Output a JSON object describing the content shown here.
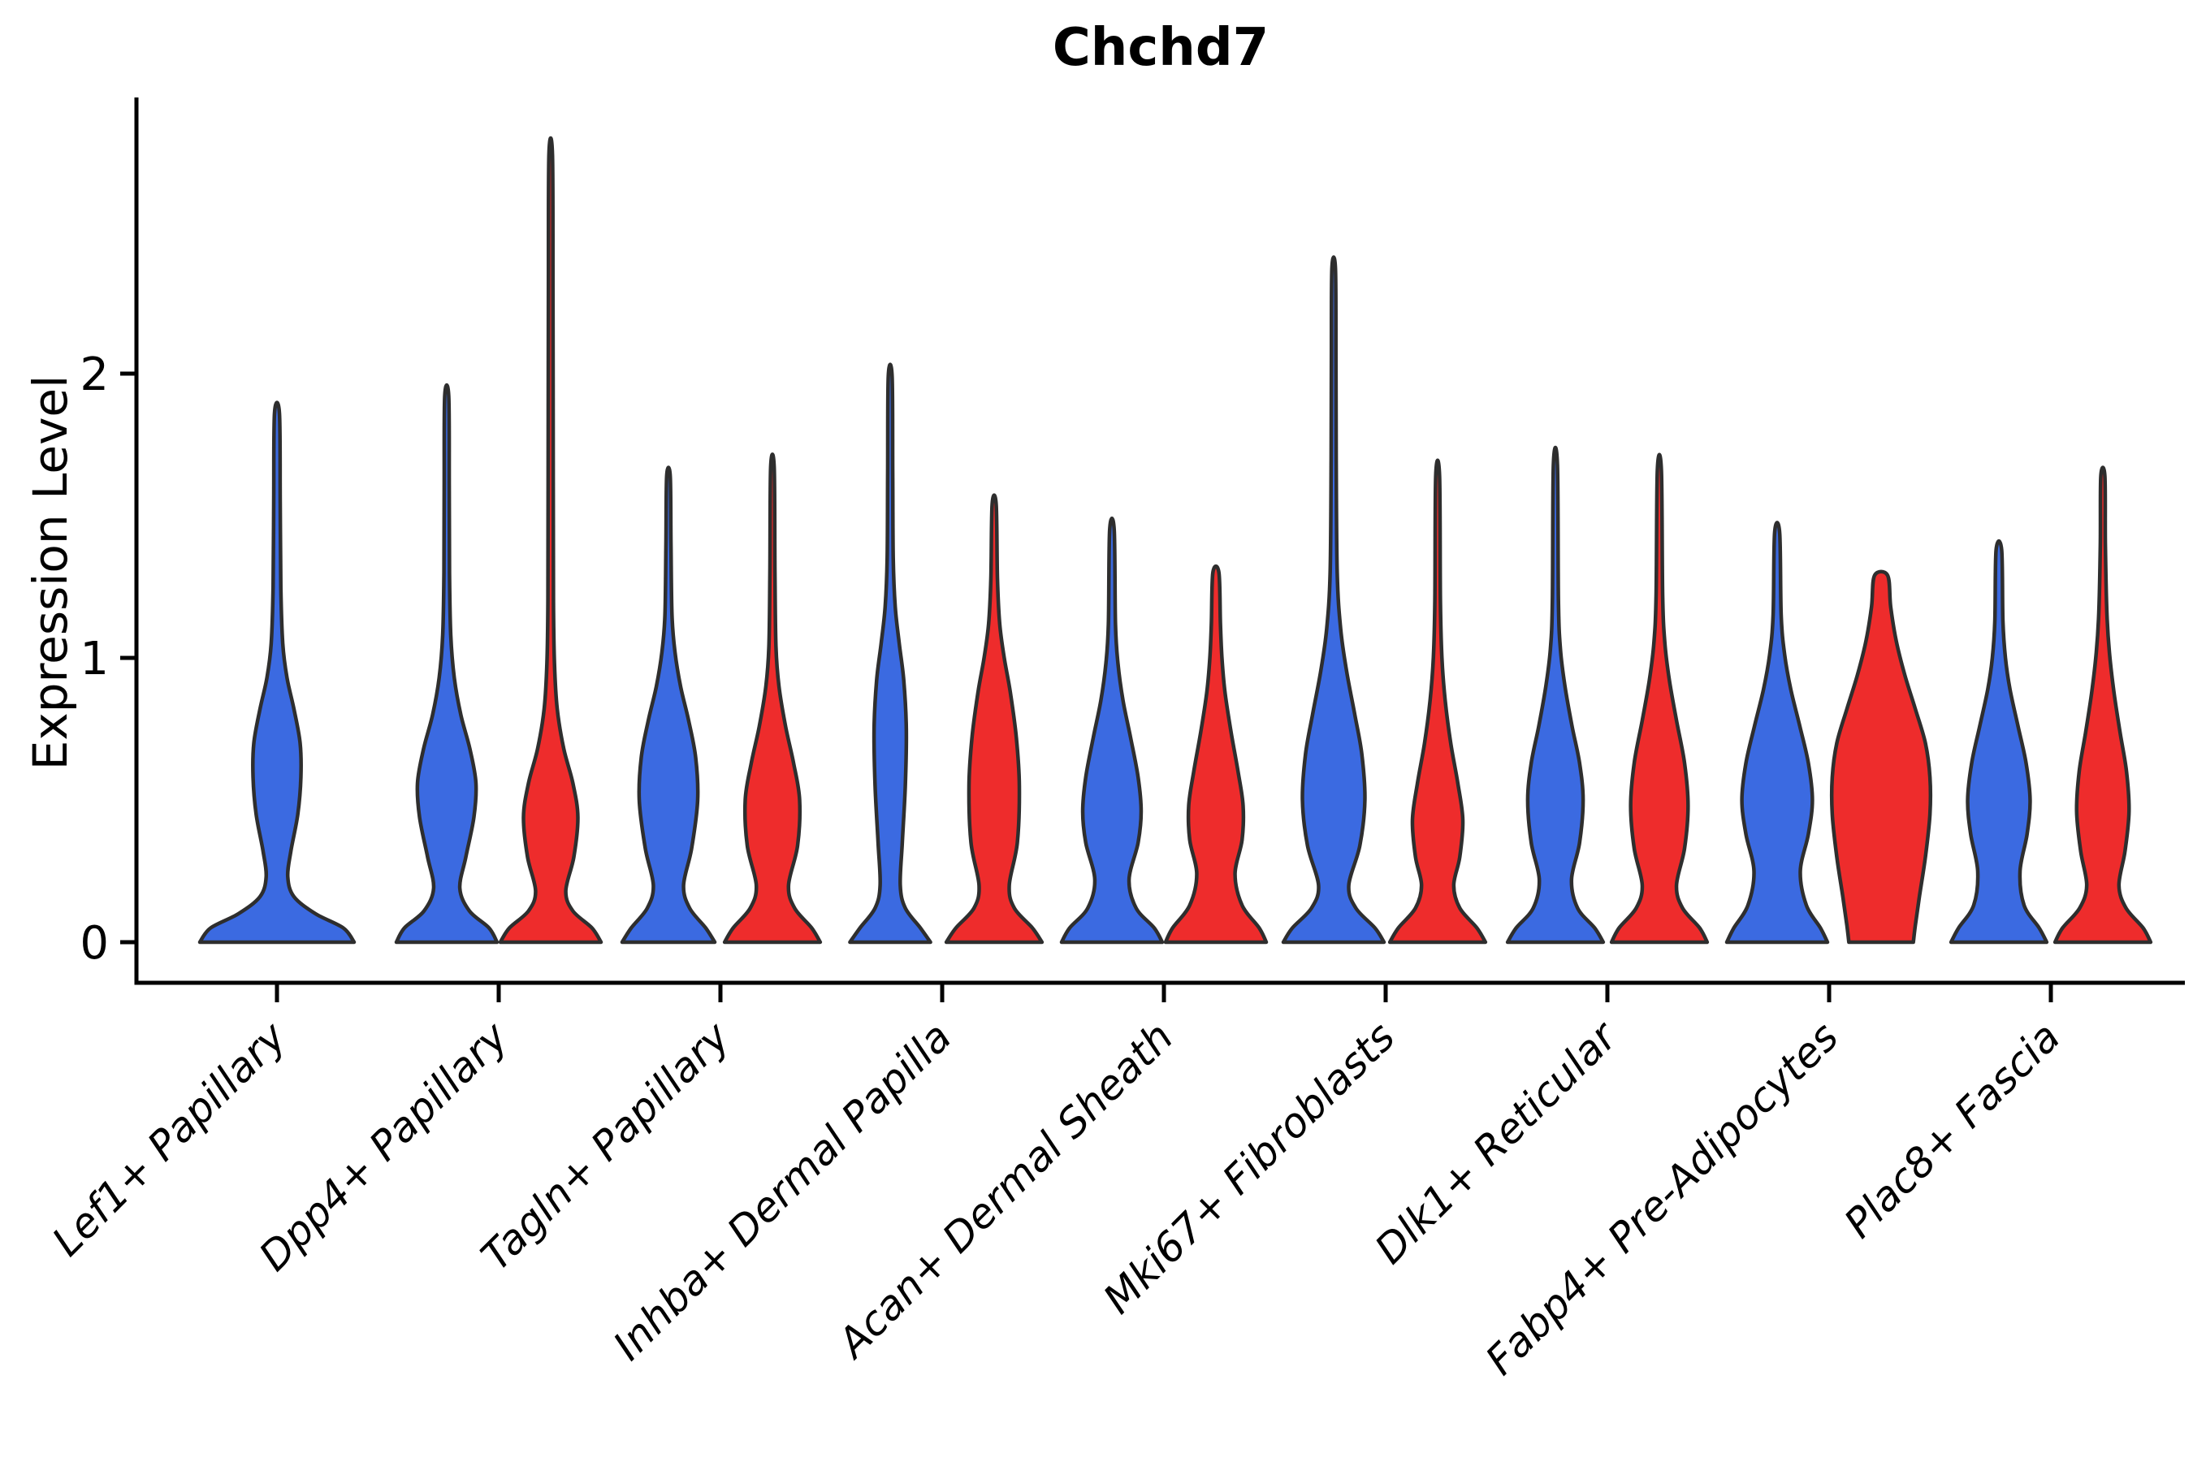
{
  "page": {
    "background": "#ffffff"
  },
  "chart_data": {
    "type": "violin",
    "title": "Chchd7",
    "ylabel": "Expression Level",
    "xlabel": "",
    "grid": false,
    "legend": "none",
    "ylim": [
      -0.15,
      2.97
    ],
    "yticks": [
      {
        "value": 0,
        "label": "0"
      },
      {
        "value": 1,
        "label": "1"
      },
      {
        "value": 2,
        "label": "2"
      }
    ],
    "colors": {
      "blue": "#3b6ae1",
      "red": "#ee2c2c",
      "outline": "#2e2e2e",
      "axis": "#000000",
      "text": "#000000"
    },
    "categories": [
      "Lef1+ Papillary",
      "Dpp4+ Papillary",
      "Tagln+ Papillary",
      "Inhba+ Dermal Papilla",
      "Acan+ Dermal Sheath",
      "Mki67+ Fibroblasts",
      "Dlk1+ Reticular",
      "Fabp4+ Pre-Adipocytes",
      "Plac8+ Fascia"
    ],
    "violins": [
      {
        "category": "Lef1+ Papillary",
        "group": "blue",
        "side": "single",
        "max": 1.86,
        "profile": [
          [
            0,
            1.0
          ],
          [
            0.05,
            0.86
          ],
          [
            0.1,
            0.5
          ],
          [
            0.16,
            0.22
          ],
          [
            0.23,
            0.14
          ],
          [
            0.32,
            0.18
          ],
          [
            0.45,
            0.27
          ],
          [
            0.58,
            0.31
          ],
          [
            0.7,
            0.3
          ],
          [
            0.82,
            0.22
          ],
          [
            0.93,
            0.13
          ],
          [
            1.05,
            0.075
          ],
          [
            1.25,
            0.05
          ],
          [
            1.55,
            0.042
          ],
          [
            1.86,
            0.032
          ]
        ]
      },
      {
        "category": "Dpp4+ Papillary",
        "group": "blue",
        "side": "left",
        "max": 1.92,
        "profile": [
          [
            0,
            1.0
          ],
          [
            0.05,
            0.84
          ],
          [
            0.11,
            0.45
          ],
          [
            0.19,
            0.26
          ],
          [
            0.3,
            0.38
          ],
          [
            0.44,
            0.54
          ],
          [
            0.56,
            0.58
          ],
          [
            0.68,
            0.46
          ],
          [
            0.8,
            0.28
          ],
          [
            0.93,
            0.15
          ],
          [
            1.08,
            0.08
          ],
          [
            1.3,
            0.055
          ],
          [
            1.6,
            0.05
          ],
          [
            1.92,
            0.04
          ]
        ]
      },
      {
        "category": "Dpp4+ Papillary",
        "group": "red",
        "side": "right",
        "max": 2.77,
        "profile": [
          [
            0,
            1.0
          ],
          [
            0.05,
            0.82
          ],
          [
            0.11,
            0.44
          ],
          [
            0.18,
            0.3
          ],
          [
            0.3,
            0.46
          ],
          [
            0.44,
            0.54
          ],
          [
            0.56,
            0.44
          ],
          [
            0.68,
            0.26
          ],
          [
            0.82,
            0.13
          ],
          [
            0.98,
            0.075
          ],
          [
            1.2,
            0.055
          ],
          [
            1.7,
            0.05
          ],
          [
            2.3,
            0.045
          ],
          [
            2.77,
            0.035
          ]
        ]
      },
      {
        "category": "Tagln+ Papillary",
        "group": "blue",
        "side": "left",
        "max": 1.64,
        "profile": [
          [
            0,
            0.92
          ],
          [
            0.05,
            0.74
          ],
          [
            0.12,
            0.42
          ],
          [
            0.2,
            0.3
          ],
          [
            0.33,
            0.46
          ],
          [
            0.5,
            0.58
          ],
          [
            0.65,
            0.54
          ],
          [
            0.78,
            0.4
          ],
          [
            0.9,
            0.24
          ],
          [
            1.02,
            0.13
          ],
          [
            1.15,
            0.07
          ],
          [
            1.4,
            0.05
          ],
          [
            1.64,
            0.035
          ]
        ]
      },
      {
        "category": "Tagln+ Papillary",
        "group": "red",
        "side": "right",
        "max": 1.67,
        "profile": [
          [
            0,
            0.95
          ],
          [
            0.05,
            0.78
          ],
          [
            0.12,
            0.44
          ],
          [
            0.2,
            0.32
          ],
          [
            0.34,
            0.5
          ],
          [
            0.5,
            0.54
          ],
          [
            0.63,
            0.42
          ],
          [
            0.76,
            0.26
          ],
          [
            0.9,
            0.13
          ],
          [
            1.04,
            0.07
          ],
          [
            1.3,
            0.05
          ],
          [
            1.67,
            0.035
          ]
        ]
      },
      {
        "category": "Inhba+ Dermal Papilla",
        "group": "blue",
        "side": "left",
        "max": 1.99,
        "profile": [
          [
            0,
            0.8
          ],
          [
            0.05,
            0.6
          ],
          [
            0.12,
            0.3
          ],
          [
            0.2,
            0.2
          ],
          [
            0.35,
            0.24
          ],
          [
            0.55,
            0.3
          ],
          [
            0.75,
            0.32
          ],
          [
            0.92,
            0.27
          ],
          [
            1.05,
            0.18
          ],
          [
            1.18,
            0.1
          ],
          [
            1.35,
            0.06
          ],
          [
            1.65,
            0.05
          ],
          [
            1.99,
            0.038
          ]
        ]
      },
      {
        "category": "Inhba+ Dermal Papilla",
        "group": "red",
        "side": "right",
        "max": 1.54,
        "profile": [
          [
            0,
            0.95
          ],
          [
            0.05,
            0.76
          ],
          [
            0.12,
            0.4
          ],
          [
            0.2,
            0.3
          ],
          [
            0.35,
            0.46
          ],
          [
            0.55,
            0.5
          ],
          [
            0.72,
            0.44
          ],
          [
            0.88,
            0.32
          ],
          [
            1.0,
            0.2
          ],
          [
            1.12,
            0.11
          ],
          [
            1.28,
            0.065
          ],
          [
            1.54,
            0.04
          ]
        ]
      },
      {
        "category": "Acan+ Dermal Sheath",
        "group": "blue",
        "side": "left",
        "max": 1.45,
        "profile": [
          [
            0,
            1.0
          ],
          [
            0.05,
            0.84
          ],
          [
            0.12,
            0.48
          ],
          [
            0.22,
            0.34
          ],
          [
            0.35,
            0.52
          ],
          [
            0.46,
            0.58
          ],
          [
            0.58,
            0.52
          ],
          [
            0.72,
            0.37
          ],
          [
            0.85,
            0.22
          ],
          [
            0.98,
            0.12
          ],
          [
            1.12,
            0.07
          ],
          [
            1.45,
            0.045
          ]
        ]
      },
      {
        "category": "Acan+ Dermal Sheath",
        "group": "red",
        "side": "right",
        "max": 1.3,
        "profile": [
          [
            0,
            1.0
          ],
          [
            0.05,
            0.86
          ],
          [
            0.13,
            0.52
          ],
          [
            0.24,
            0.38
          ],
          [
            0.36,
            0.52
          ],
          [
            0.48,
            0.54
          ],
          [
            0.6,
            0.44
          ],
          [
            0.74,
            0.3
          ],
          [
            0.88,
            0.18
          ],
          [
            1.0,
            0.12
          ],
          [
            1.12,
            0.09
          ],
          [
            1.3,
            0.06
          ]
        ]
      },
      {
        "category": "Mki67+ Fibroblasts",
        "group": "blue",
        "side": "left",
        "max": 2.37,
        "profile": [
          [
            0,
            1.0
          ],
          [
            0.05,
            0.82
          ],
          [
            0.12,
            0.44
          ],
          [
            0.2,
            0.3
          ],
          [
            0.34,
            0.52
          ],
          [
            0.5,
            0.62
          ],
          [
            0.66,
            0.56
          ],
          [
            0.8,
            0.42
          ],
          [
            0.95,
            0.26
          ],
          [
            1.1,
            0.14
          ],
          [
            1.3,
            0.07
          ],
          [
            1.7,
            0.05
          ],
          [
            2.05,
            0.045
          ],
          [
            2.37,
            0.035
          ]
        ]
      },
      {
        "category": "Mki67+ Fibroblasts",
        "group": "red",
        "side": "right",
        "max": 1.64,
        "profile": [
          [
            0,
            0.95
          ],
          [
            0.05,
            0.78
          ],
          [
            0.12,
            0.44
          ],
          [
            0.2,
            0.32
          ],
          [
            0.3,
            0.44
          ],
          [
            0.43,
            0.5
          ],
          [
            0.56,
            0.4
          ],
          [
            0.7,
            0.26
          ],
          [
            0.85,
            0.15
          ],
          [
            1.0,
            0.085
          ],
          [
            1.2,
            0.055
          ],
          [
            1.64,
            0.038
          ]
        ]
      },
      {
        "category": "Dlk1+ Reticular",
        "group": "blue",
        "side": "left",
        "max": 1.68,
        "profile": [
          [
            0,
            0.95
          ],
          [
            0.05,
            0.78
          ],
          [
            0.12,
            0.44
          ],
          [
            0.22,
            0.32
          ],
          [
            0.35,
            0.48
          ],
          [
            0.5,
            0.55
          ],
          [
            0.63,
            0.48
          ],
          [
            0.76,
            0.33
          ],
          [
            0.9,
            0.19
          ],
          [
            1.03,
            0.1
          ],
          [
            1.2,
            0.06
          ],
          [
            1.68,
            0.04
          ]
        ]
      },
      {
        "category": "Dlk1+ Reticular",
        "group": "red",
        "side": "right",
        "max": 1.66,
        "profile": [
          [
            0,
            0.95
          ],
          [
            0.05,
            0.8
          ],
          [
            0.12,
            0.46
          ],
          [
            0.2,
            0.34
          ],
          [
            0.33,
            0.5
          ],
          [
            0.48,
            0.57
          ],
          [
            0.63,
            0.5
          ],
          [
            0.78,
            0.34
          ],
          [
            0.92,
            0.2
          ],
          [
            1.05,
            0.11
          ],
          [
            1.22,
            0.065
          ],
          [
            1.66,
            0.04
          ]
        ]
      },
      {
        "category": "Fabp4+ Pre-Adipocytes",
        "group": "blue",
        "side": "left",
        "max": 1.44,
        "profile": [
          [
            0,
            1.0
          ],
          [
            0.05,
            0.86
          ],
          [
            0.13,
            0.58
          ],
          [
            0.25,
            0.46
          ],
          [
            0.38,
            0.62
          ],
          [
            0.5,
            0.7
          ],
          [
            0.63,
            0.62
          ],
          [
            0.76,
            0.45
          ],
          [
            0.89,
            0.27
          ],
          [
            1.01,
            0.15
          ],
          [
            1.15,
            0.08
          ],
          [
            1.44,
            0.05
          ]
        ]
      },
      {
        "category": "Fabp4+ Pre-Adipocytes",
        "group": "red",
        "side": "right",
        "max": 1.29,
        "profile": [
          [
            0,
            0.64
          ],
          [
            0.06,
            0.68
          ],
          [
            0.16,
            0.76
          ],
          [
            0.3,
            0.88
          ],
          [
            0.45,
            0.97
          ],
          [
            0.58,
            0.97
          ],
          [
            0.7,
            0.88
          ],
          [
            0.82,
            0.68
          ],
          [
            0.94,
            0.47
          ],
          [
            1.06,
            0.3
          ],
          [
            1.18,
            0.19
          ],
          [
            1.29,
            0.13
          ]
        ]
      },
      {
        "category": "Plac8+ Fascia",
        "group": "blue",
        "side": "left",
        "max": 1.38,
        "profile": [
          [
            0,
            0.95
          ],
          [
            0.05,
            0.8
          ],
          [
            0.13,
            0.5
          ],
          [
            0.25,
            0.42
          ],
          [
            0.38,
            0.56
          ],
          [
            0.5,
            0.62
          ],
          [
            0.63,
            0.54
          ],
          [
            0.76,
            0.38
          ],
          [
            0.89,
            0.22
          ],
          [
            1.0,
            0.13
          ],
          [
            1.13,
            0.08
          ],
          [
            1.38,
            0.055
          ]
        ]
      },
      {
        "category": "Plac8+ Fascia",
        "group": "red",
        "side": "right",
        "max": 1.64,
        "profile": [
          [
            0,
            0.95
          ],
          [
            0.05,
            0.8
          ],
          [
            0.12,
            0.46
          ],
          [
            0.2,
            0.32
          ],
          [
            0.32,
            0.44
          ],
          [
            0.46,
            0.52
          ],
          [
            0.6,
            0.47
          ],
          [
            0.74,
            0.34
          ],
          [
            0.88,
            0.22
          ],
          [
            1.02,
            0.13
          ],
          [
            1.16,
            0.08
          ],
          [
            1.4,
            0.05
          ],
          [
            1.64,
            0.04
          ]
        ]
      }
    ]
  }
}
